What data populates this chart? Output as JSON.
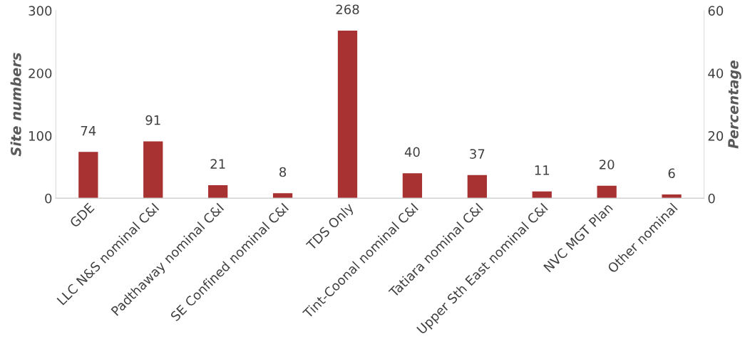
{
  "chart_data": {
    "type": "bar",
    "categories": [
      "GDE",
      "LLC N&S nominal C&I",
      "Padthaway nominal C&I",
      "SE Confined nominal C&I",
      "TDS Only",
      "Tint-Coonal nominal C&I",
      "Tatiara nominal C&I",
      "Upper Sth East nominal C&I",
      "NVC MGT Plan",
      "Other nominal"
    ],
    "values": [
      74,
      91,
      21,
      8,
      268,
      40,
      37,
      11,
      20,
      6
    ],
    "color": "#a83232",
    "ylabel": "Site numbers",
    "y2label": "Percentage",
    "ylim": [
      0,
      300
    ],
    "yticks": [
      0,
      100,
      200,
      300
    ],
    "y2lim": [
      0,
      60
    ],
    "y2ticks": [
      0,
      20,
      40,
      60
    ],
    "data_labels": true,
    "grid": false,
    "legend": false
  }
}
